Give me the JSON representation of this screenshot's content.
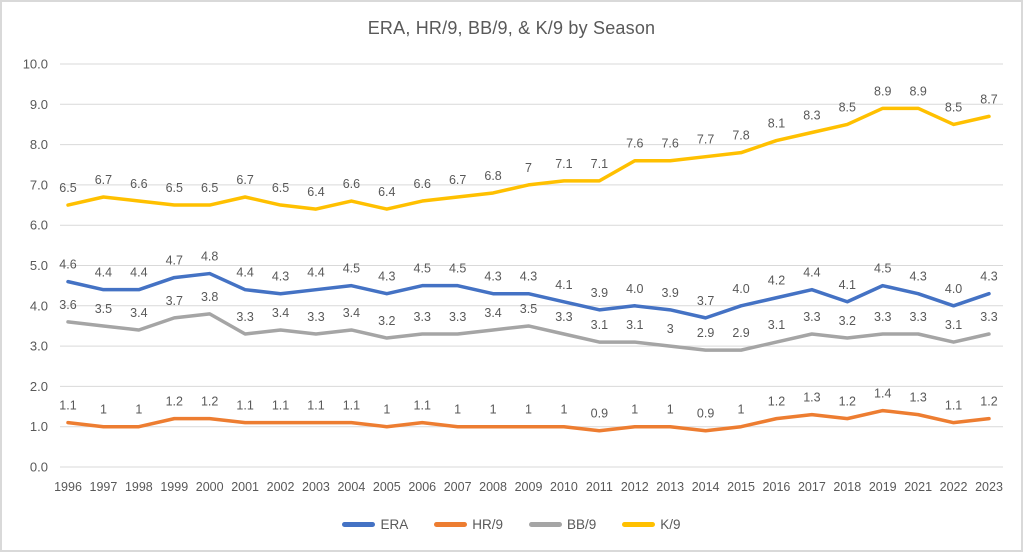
{
  "chart_data": {
    "type": "line",
    "title": "ERA, HR/9, BB/9, & K/9 by Season",
    "xlabel": "",
    "ylabel": "",
    "ylim": [
      0,
      10
    ],
    "yticks": [
      "0.0",
      "1.0",
      "2.0",
      "3.0",
      "4.0",
      "5.0",
      "6.0",
      "7.0",
      "8.0",
      "9.0",
      "10.0"
    ],
    "grid": true,
    "legend_position": "bottom",
    "categories": [
      "1996",
      "1997",
      "1998",
      "1999",
      "2000",
      "2001",
      "2002",
      "2003",
      "2004",
      "2005",
      "2006",
      "2007",
      "2008",
      "2009",
      "2010",
      "2011",
      "2012",
      "2013",
      "2014",
      "2015",
      "2016",
      "2017",
      "2018",
      "2019",
      "2021",
      "2022",
      "2023"
    ],
    "series": [
      {
        "name": "ERA",
        "color": "#4472C4",
        "values": [
          4.6,
          4.4,
          4.4,
          4.7,
          4.8,
          4.4,
          4.3,
          4.4,
          4.5,
          4.3,
          4.5,
          4.5,
          4.3,
          4.3,
          4.1,
          3.9,
          4.0,
          3.9,
          3.7,
          4.0,
          4.2,
          4.4,
          4.1,
          4.5,
          4.3,
          4.0,
          4.3
        ],
        "labels": [
          "4.6",
          "4.4",
          "4.4",
          "4.7",
          "4.8",
          "4.4",
          "4.3",
          "4.4",
          "4.5",
          "4.3",
          "4.5",
          "4.5",
          "4.3",
          "4.3",
          "4.1",
          "3.9",
          "4.0",
          "3.9",
          "3.7",
          "4.0",
          "4.2",
          "4.4",
          "4.1",
          "4.5",
          "4.3",
          "4.0",
          "4.3"
        ]
      },
      {
        "name": "HR/9",
        "color": "#ED7D31",
        "values": [
          1.1,
          1,
          1,
          1.2,
          1.2,
          1.1,
          1.1,
          1.1,
          1.1,
          1,
          1.1,
          1,
          1,
          1,
          1,
          0.9,
          1,
          1,
          0.9,
          1,
          1.2,
          1.3,
          1.2,
          1.4,
          1.3,
          1.1,
          1.2
        ],
        "labels": [
          "1.1",
          "1",
          "1",
          "1.2",
          "1.2",
          "1.1",
          "1.1",
          "1.1",
          "1.1",
          "1",
          "1.1",
          "1",
          "1",
          "1",
          "1",
          "0.9",
          "1",
          "1",
          "0.9",
          "1",
          "1.2",
          "1.3",
          "1.2",
          "1.4",
          "1.3",
          "1.1",
          "1.2"
        ]
      },
      {
        "name": "BB/9",
        "color": "#A5A5A5",
        "values": [
          3.6,
          3.5,
          3.4,
          3.7,
          3.8,
          3.3,
          3.4,
          3.3,
          3.4,
          3.2,
          3.3,
          3.3,
          3.4,
          3.5,
          3.3,
          3.1,
          3.1,
          3,
          2.9,
          2.9,
          3.1,
          3.3,
          3.2,
          3.3,
          3.3,
          3.1,
          3.3
        ],
        "labels": [
          "3.6",
          "3.5",
          "3.4",
          "3.7",
          "3.8",
          "3.3",
          "3.4",
          "3.3",
          "3.4",
          "3.2",
          "3.3",
          "3.3",
          "3.4",
          "3.5",
          "3.3",
          "3.1",
          "3.1",
          "3",
          "2.9",
          "2.9",
          "3.1",
          "3.3",
          "3.2",
          "3.3",
          "3.3",
          "3.1",
          "3.3"
        ]
      },
      {
        "name": "K/9",
        "color": "#FFC000",
        "values": [
          6.5,
          6.7,
          6.6,
          6.5,
          6.5,
          6.7,
          6.5,
          6.4,
          6.6,
          6.4,
          6.6,
          6.7,
          6.8,
          7,
          7.1,
          7.1,
          7.6,
          7.6,
          7.7,
          7.8,
          8.1,
          8.3,
          8.5,
          8.9,
          8.9,
          8.5,
          8.7
        ],
        "labels": [
          "6.5",
          "6.7",
          "6.6",
          "6.5",
          "6.5",
          "6.7",
          "6.5",
          "6.4",
          "6.6",
          "6.4",
          "6.6",
          "6.7",
          "6.8",
          "7",
          "7.1",
          "7.1",
          "7.6",
          "7.6",
          "7.7",
          "7.8",
          "8.1",
          "8.3",
          "8.5",
          "8.9",
          "8.9",
          "8.5",
          "8.7"
        ]
      }
    ],
    "colors": {
      "axis_text": "#595959",
      "data_label": "#595959",
      "gridline": "#D9D9D9",
      "frame_border": "#D9D9D9",
      "background": "#ffffff"
    }
  }
}
